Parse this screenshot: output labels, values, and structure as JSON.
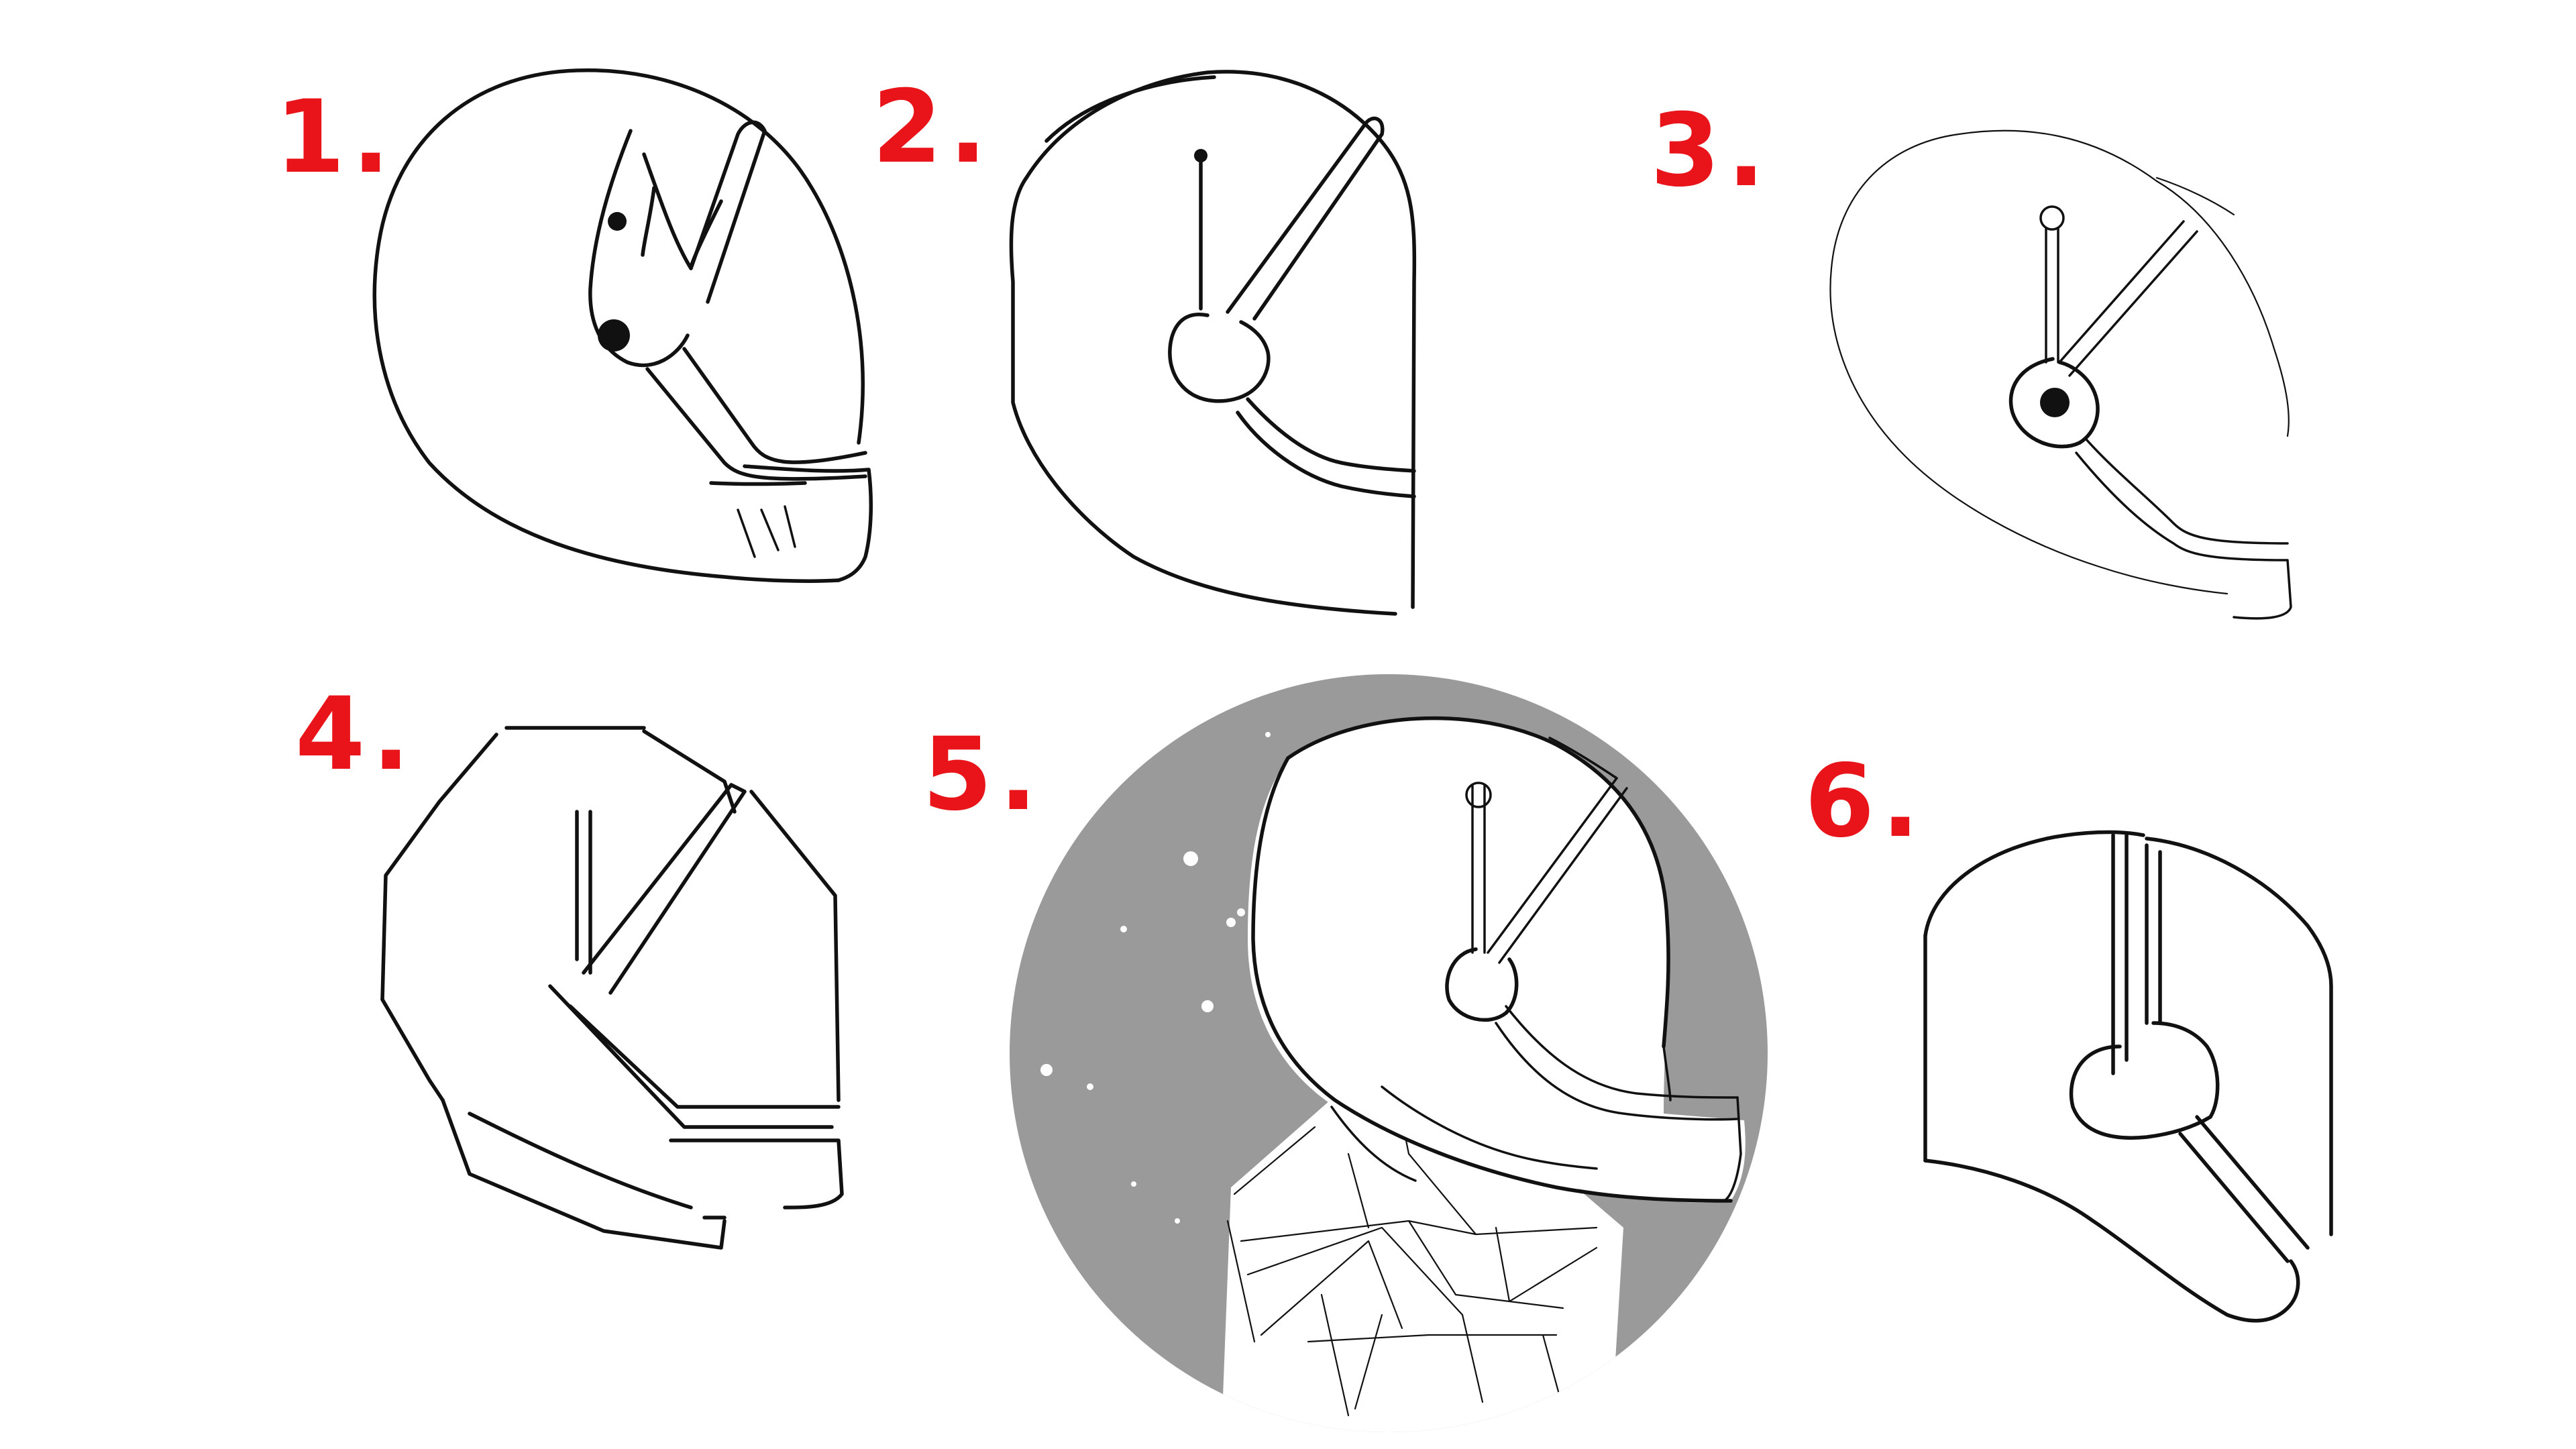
{
  "sketch_labels": [
    "1.",
    "2.",
    "3.",
    "4.",
    "5.",
    "6."
  ],
  "colors": {
    "label_red": "#e8141a",
    "ink": "#111111",
    "space_grey": "#9a9a9a",
    "stars": "#ffffff",
    "background": "#ffffff"
  },
  "helmets": [
    {
      "label": "1.",
      "style": "rounded-visor-clip"
    },
    {
      "label": "2.",
      "style": "flat-back-antenna"
    },
    {
      "label": "3.",
      "style": "oval-antenna-eye"
    },
    {
      "label": "4.",
      "style": "angular-faceted"
    },
    {
      "label": "5.",
      "style": "astronaut-in-space"
    },
    {
      "label": "6.",
      "style": "flat-top-split"
    }
  ]
}
